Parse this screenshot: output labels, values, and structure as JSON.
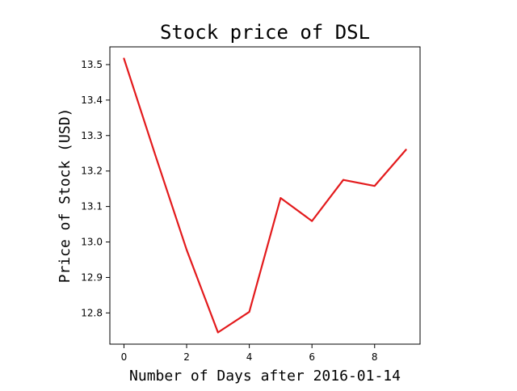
{
  "chart_data": {
    "type": "line",
    "title": "Stock price of DSL",
    "xlabel": "Number of Days after 2016-01-14",
    "ylabel": "Price of Stock (USD)",
    "xlim": [
      -0.45,
      9.45
    ],
    "ylim": [
      12.712,
      13.55
    ],
    "xticks": [
      0,
      2,
      4,
      6,
      8
    ],
    "yticks": [
      12.8,
      12.9,
      13.0,
      13.1,
      13.2,
      13.3,
      13.4,
      13.5
    ],
    "ytick_labels": [
      "12.8",
      "12.9",
      "13.0",
      "13.1",
      "13.2",
      "13.3",
      "13.4",
      "13.5"
    ],
    "grid": false,
    "legend": false,
    "series": [
      {
        "color": "#e31a1c",
        "x": [
          0,
          1,
          2,
          3,
          4,
          5,
          6,
          7,
          8,
          9
        ],
        "y": [
          13.517,
          13.245,
          12.978,
          12.745,
          12.803,
          13.124,
          13.059,
          13.175,
          13.158,
          13.26
        ]
      }
    ]
  }
}
